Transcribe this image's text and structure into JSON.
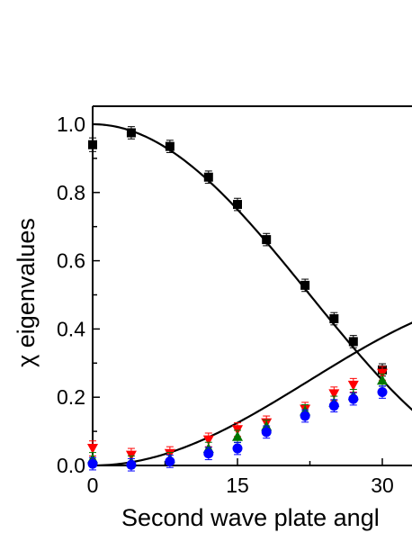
{
  "chart_data": {
    "type": "scatter",
    "title": "",
    "xlabel": "Second wave plate angl",
    "ylabel": "χ eigenvalues",
    "xlim": [
      0,
      32.5
    ],
    "ylim": [
      0,
      1.05
    ],
    "x_ticks": [
      "0",
      "15",
      "30"
    ],
    "y_ticks": [
      "0.0",
      "0.2",
      "0.4",
      "0.6",
      "0.8",
      "1.0"
    ],
    "grid": false,
    "legend": "none",
    "series": [
      {
        "marker": "square",
        "color": "#000000",
        "points": [
          {
            "x": 0,
            "y": 0.94,
            "err": 0.02
          },
          {
            "x": 4,
            "y": 0.975,
            "err": 0.018
          },
          {
            "x": 8,
            "y": 0.935,
            "err": 0.018
          },
          {
            "x": 12,
            "y": 0.845,
            "err": 0.018
          },
          {
            "x": 15,
            "y": 0.765,
            "err": 0.018
          },
          {
            "x": 18,
            "y": 0.662,
            "err": 0.018
          },
          {
            "x": 22,
            "y": 0.528,
            "err": 0.018
          },
          {
            "x": 25,
            "y": 0.43,
            "err": 0.018
          },
          {
            "x": 27,
            "y": 0.363,
            "err": 0.018
          },
          {
            "x": 30,
            "y": 0.28,
            "err": 0.018
          }
        ]
      },
      {
        "marker": "triangle-down",
        "color": "#ff0000",
        "points": [
          {
            "x": 0,
            "y": 0.05,
            "err": 0.022
          },
          {
            "x": 4,
            "y": 0.03,
            "err": 0.02
          },
          {
            "x": 8,
            "y": 0.035,
            "err": 0.02
          },
          {
            "x": 12,
            "y": 0.075,
            "err": 0.02
          },
          {
            "x": 15,
            "y": 0.105,
            "err": 0.02
          },
          {
            "x": 18,
            "y": 0.125,
            "err": 0.02
          },
          {
            "x": 22,
            "y": 0.165,
            "err": 0.02
          },
          {
            "x": 25,
            "y": 0.21,
            "err": 0.02
          },
          {
            "x": 27,
            "y": 0.235,
            "err": 0.02
          },
          {
            "x": 30,
            "y": 0.27,
            "err": 0.02
          }
        ]
      },
      {
        "marker": "triangle-up",
        "color": "#007700",
        "points": [
          {
            "x": 0,
            "y": 0.02,
            "err": 0.018
          },
          {
            "x": 4,
            "y": 0.01,
            "err": 0.018
          },
          {
            "x": 8,
            "y": 0.02,
            "err": 0.018
          },
          {
            "x": 12,
            "y": 0.05,
            "err": 0.018
          },
          {
            "x": 15,
            "y": 0.085,
            "err": 0.018
          },
          {
            "x": 18,
            "y": 0.115,
            "err": 0.018
          },
          {
            "x": 22,
            "y": 0.16,
            "err": 0.018
          },
          {
            "x": 25,
            "y": 0.185,
            "err": 0.018
          },
          {
            "x": 27,
            "y": 0.205,
            "err": 0.018
          },
          {
            "x": 30,
            "y": 0.25,
            "err": 0.018
          }
        ]
      },
      {
        "marker": "circle",
        "color": "#0000ff",
        "points": [
          {
            "x": 0,
            "y": 0.005,
            "err": 0.018
          },
          {
            "x": 4,
            "y": 0.002,
            "err": 0.018
          },
          {
            "x": 8,
            "y": 0.012,
            "err": 0.018
          },
          {
            "x": 12,
            "y": 0.035,
            "err": 0.018
          },
          {
            "x": 15,
            "y": 0.05,
            "err": 0.018
          },
          {
            "x": 18,
            "y": 0.098,
            "err": 0.018
          },
          {
            "x": 22,
            "y": 0.145,
            "err": 0.018
          },
          {
            "x": 25,
            "y": 0.175,
            "err": 0.018
          },
          {
            "x": 27,
            "y": 0.195,
            "err": 0.018
          },
          {
            "x": 30,
            "y": 0.215,
            "err": 0.018
          }
        ]
      }
    ],
    "fit_curves": [
      {
        "formula": "cos^2",
        "color": "#000000"
      },
      {
        "formula": "0.5*sin^2",
        "color": "#000000"
      }
    ]
  }
}
